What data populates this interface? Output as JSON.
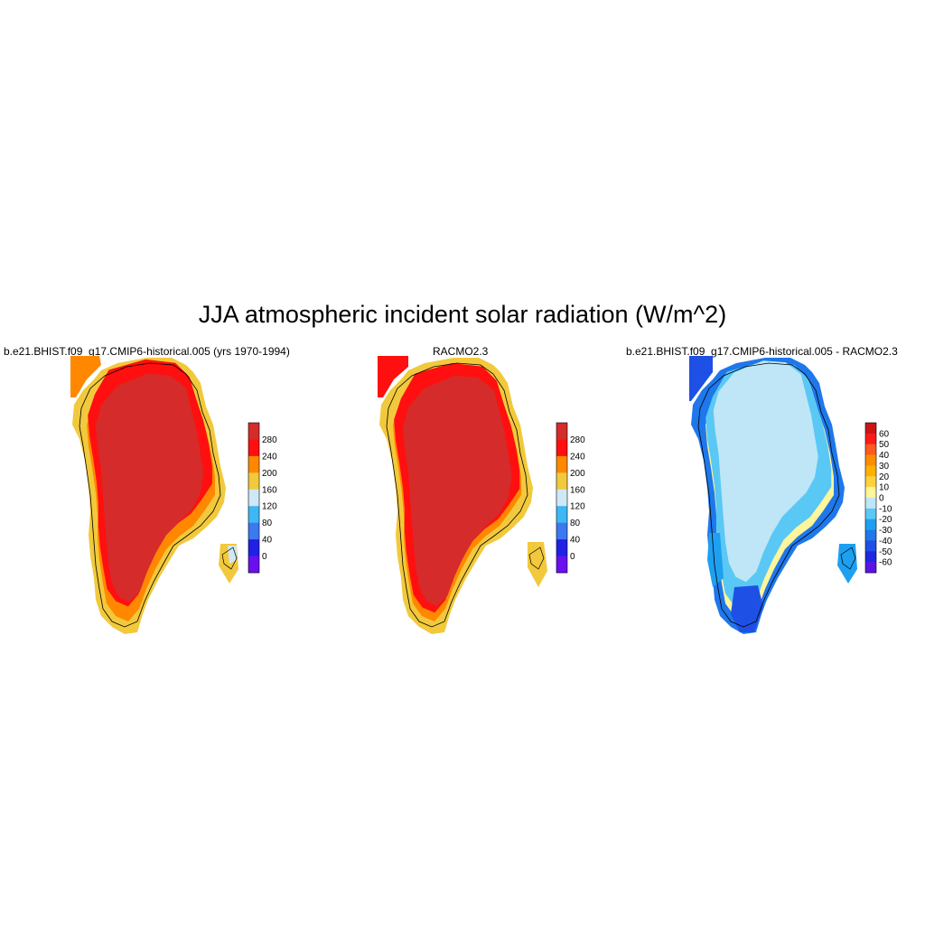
{
  "title": "JJA atmospheric incident solar radiation (W/m^2)",
  "panels": [
    {
      "id": "model",
      "title": "b.e21.BHIST.f09_g17.CMIP6-historical.005 (yrs 1970-1994)",
      "colorbar": {
        "levels": [
          "280",
          "240",
          "200",
          "160",
          "120",
          "80",
          "40",
          "0"
        ],
        "colors": [
          "#d52b2b",
          "#ff0f0f",
          "#ff8800",
          "#f2c93c",
          "#cfe8f7",
          "#3db8f5",
          "#3c78f0",
          "#2020e6",
          "#6a10ee"
        ]
      }
    },
    {
      "id": "obs",
      "title": "RACMO2.3",
      "colorbar": {
        "levels": [
          "280",
          "240",
          "200",
          "160",
          "120",
          "80",
          "40",
          "0"
        ],
        "colors": [
          "#d52b2b",
          "#ff0f0f",
          "#ff8800",
          "#f2c93c",
          "#cfe8f7",
          "#3db8f5",
          "#3c78f0",
          "#2020e6",
          "#6a10ee"
        ]
      }
    },
    {
      "id": "diff",
      "title": "b.e21.BHIST.f09_g17.CMIP6-historical.005 - RACMO2.3",
      "colorbar": {
        "levels": [
          "60",
          "50",
          "40",
          "30",
          "20",
          "10",
          "0",
          "-10",
          "-20",
          "-30",
          "-40",
          "-50",
          "-60"
        ],
        "colors": [
          "#cc1414",
          "#ff1a1a",
          "#ff5a1e",
          "#ff8c00",
          "#ffb000",
          "#ffd23c",
          "#fff59b",
          "#bfe6f6",
          "#5ac8f5",
          "#1ea0f0",
          "#1e78eb",
          "#1e50e6",
          "#1e28e1",
          "#5a14e6"
        ]
      }
    }
  ]
}
